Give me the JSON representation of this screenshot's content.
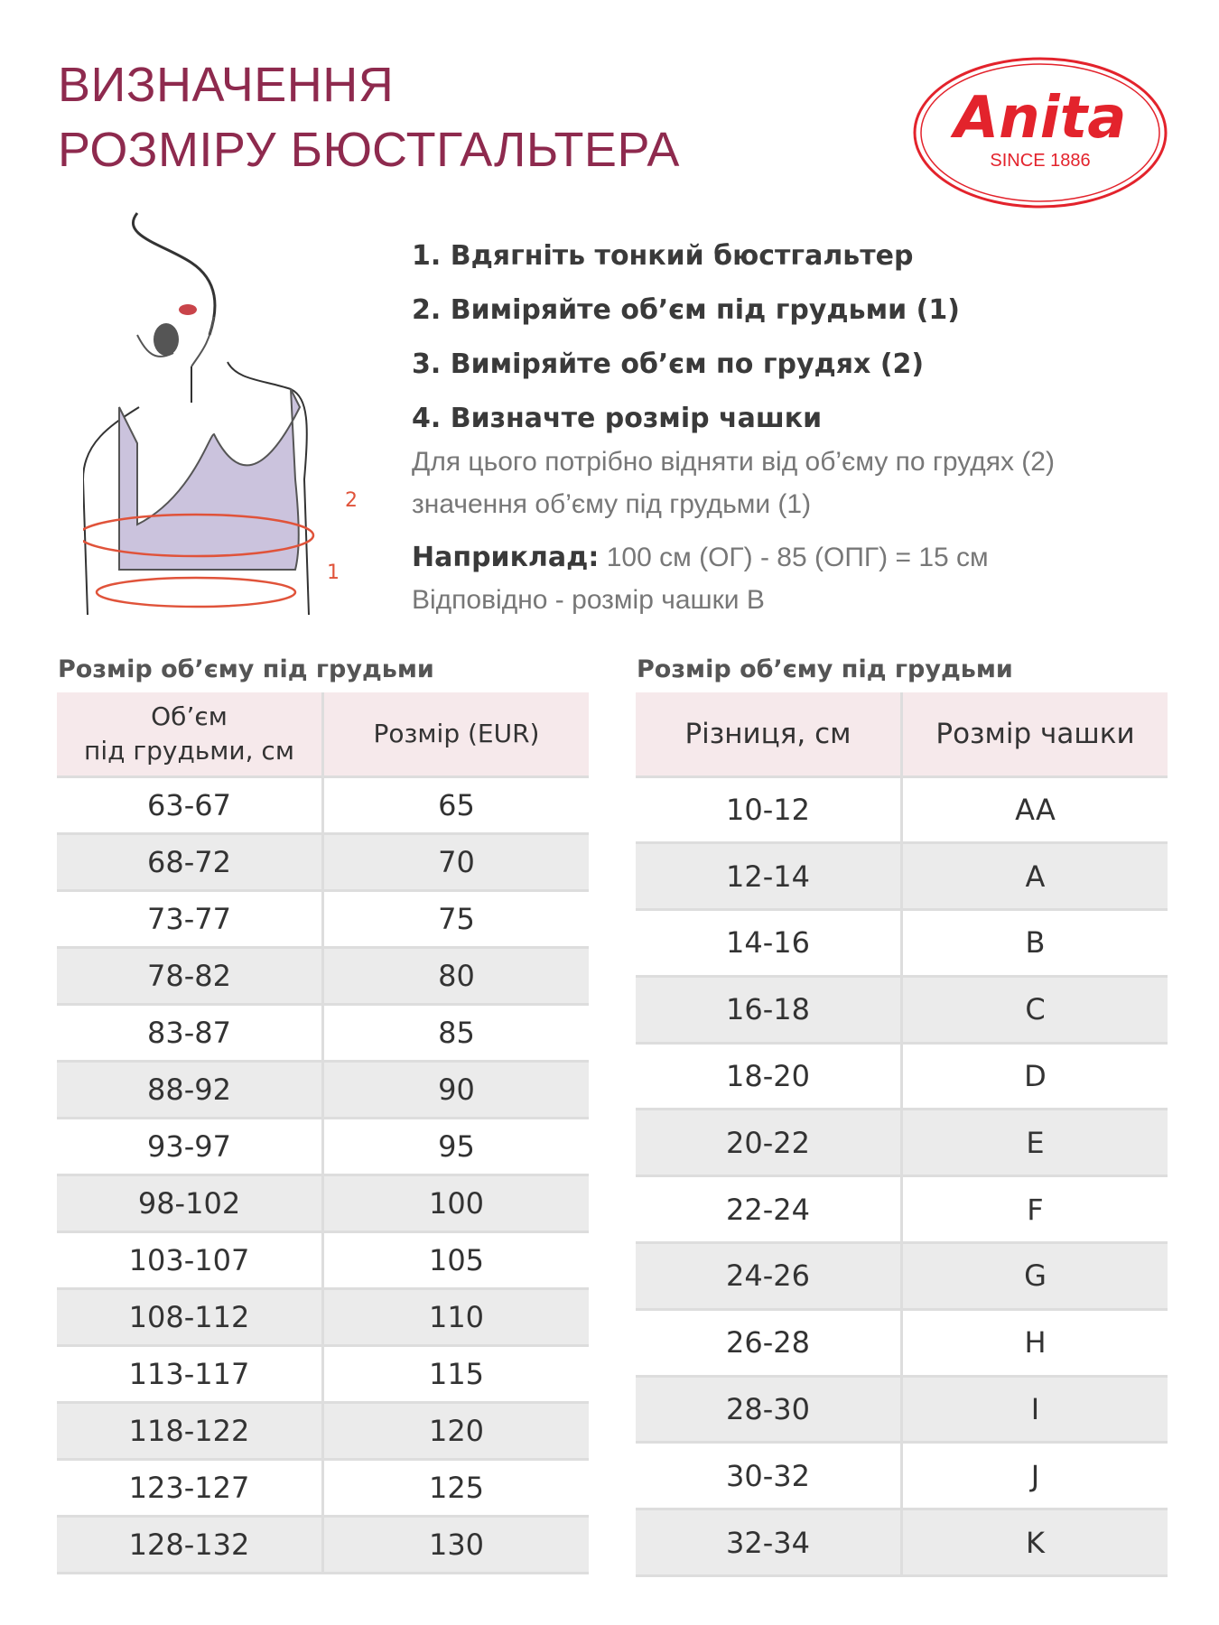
{
  "title": {
    "line1": "ВИЗНАЧЕННЯ",
    "line2": "РОЗМІРУ БЮСТГАЛЬТЕРА"
  },
  "logo": {
    "brand": "Anita",
    "since": "SINCE 1886",
    "color": "#e3232c"
  },
  "illustration": {
    "marker1": "1",
    "marker2": "2"
  },
  "steps": [
    "1. Вдягніть тонкий бюстгальтер",
    "2. Виміряйте об’єм під грудьми (1)",
    "3. Виміряйте об’єм по грудях (2)",
    "4. Визначте розмір чашки"
  ],
  "description": {
    "line1": "Для цього потрібно відняти від об’єму по грудях (2)",
    "line2": "значення об’єму під грудьми (1)"
  },
  "example": {
    "label": "Наприклад:",
    "text": "100 см (ОГ) - 85 (ОПГ) = 15 см",
    "result": "Відповідно - розмір чашки В"
  },
  "band_table": {
    "title": "Розмір об’єму під грудьми",
    "col1_line1": "Об’єм",
    "col1_line2": "під грудьми, см",
    "col2": "Розмір (EUR)",
    "rows": [
      [
        "63-67",
        "65"
      ],
      [
        "68-72",
        "70"
      ],
      [
        "73-77",
        "75"
      ],
      [
        "78-82",
        "80"
      ],
      [
        "83-87",
        "85"
      ],
      [
        "88-92",
        "90"
      ],
      [
        "93-97",
        "95"
      ],
      [
        "98-102",
        "100"
      ],
      [
        "103-107",
        "105"
      ],
      [
        "108-112",
        "110"
      ],
      [
        "113-117",
        "115"
      ],
      [
        "118-122",
        "120"
      ],
      [
        "123-127",
        "125"
      ],
      [
        "128-132",
        "130"
      ]
    ]
  },
  "cup_table": {
    "title": "Розмір об’єму під грудьми",
    "col1": "Різниця, см",
    "col2": "Розмір чашки",
    "rows": [
      [
        "10-12",
        "AA"
      ],
      [
        "12-14",
        "A"
      ],
      [
        "14-16",
        "B"
      ],
      [
        "16-18",
        "C"
      ],
      [
        "18-20",
        "D"
      ],
      [
        "20-22",
        "E"
      ],
      [
        "22-24",
        "F"
      ],
      [
        "24-26",
        "G"
      ],
      [
        "26-28",
        "H"
      ],
      [
        "28-30",
        "I"
      ],
      [
        "30-32",
        "J"
      ],
      [
        "32-34",
        "K"
      ]
    ]
  },
  "colors": {
    "title": "#8e2a4e",
    "header": "#f6e9eb",
    "stripe": "#ebebeb",
    "measure": "#e0533a"
  }
}
